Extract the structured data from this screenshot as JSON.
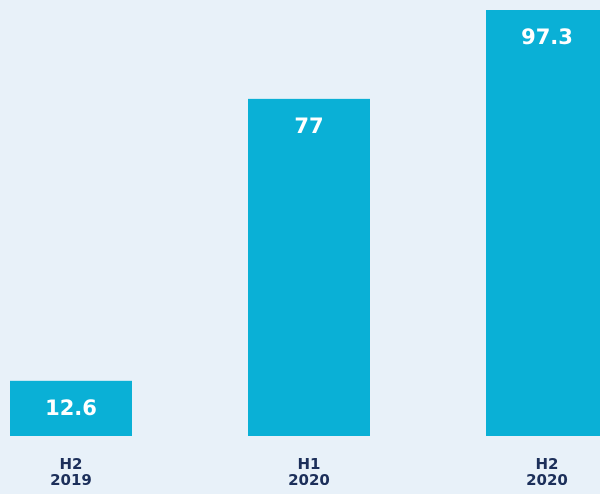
{
  "chart_data": {
    "type": "bar",
    "categories": [
      "H2 2019",
      "H1 2020",
      "H2 2020"
    ],
    "values": [
      12.6,
      77,
      97.3
    ],
    "color": "#0ab0d6",
    "label_color": "#ffffff"
  }
}
